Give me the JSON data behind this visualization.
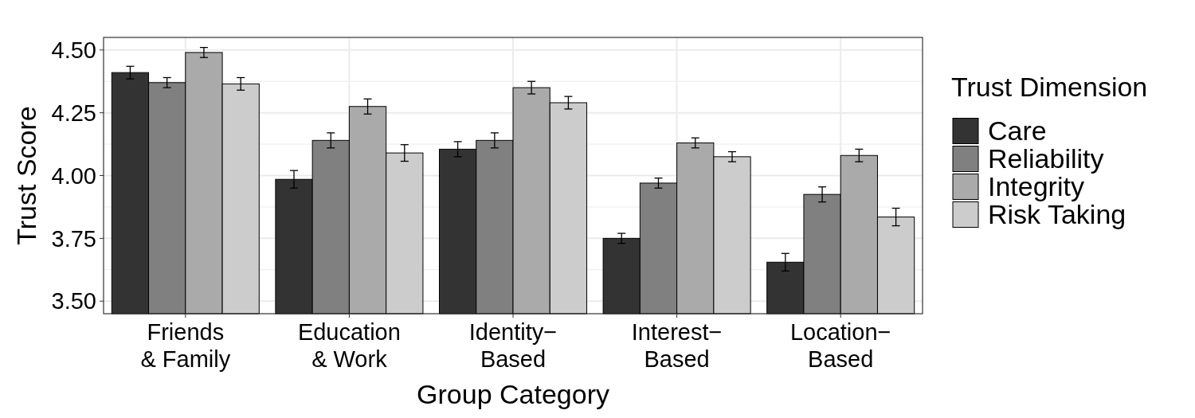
{
  "chart_data": {
    "type": "bar",
    "xlabel": "Group Category",
    "ylabel": "Trust Score",
    "legend_title": "Trust Dimension",
    "categories": [
      "Friends\n& Family",
      "Education\n& Work",
      "Identity−\nBased",
      "Interest−\nBased",
      "Location−\nBased"
    ],
    "series": [
      {
        "name": "Care",
        "color": "#333333",
        "values": [
          4.41,
          3.985,
          4.105,
          3.75,
          3.655
        ],
        "errors": [
          0.025,
          0.035,
          0.03,
          0.02,
          0.035
        ]
      },
      {
        "name": "Reliability",
        "color": "#808080",
        "values": [
          4.37,
          4.14,
          4.14,
          3.97,
          3.925
        ],
        "errors": [
          0.02,
          0.03,
          0.03,
          0.02,
          0.03
        ]
      },
      {
        "name": "Integrity",
        "color": "#aaaaaa",
        "values": [
          4.49,
          4.275,
          4.35,
          4.13,
          4.08
        ],
        "errors": [
          0.02,
          0.03,
          0.025,
          0.02,
          0.025
        ]
      },
      {
        "name": "Risk Taking",
        "color": "#cccccc",
        "values": [
          4.365,
          4.09,
          4.29,
          4.075,
          3.835
        ],
        "errors": [
          0.025,
          0.033,
          0.025,
          0.02,
          0.035
        ]
      }
    ],
    "ylim": [
      3.45,
      4.55
    ],
    "yticks": [
      {
        "value": 3.5,
        "label": "3.50"
      },
      3.75,
      {
        "value": 4.0,
        "label": "4.00"
      },
      4.25,
      {
        "value": 4.5,
        "label": "4.50"
      }
    ],
    "grid": true,
    "legend": "right"
  }
}
